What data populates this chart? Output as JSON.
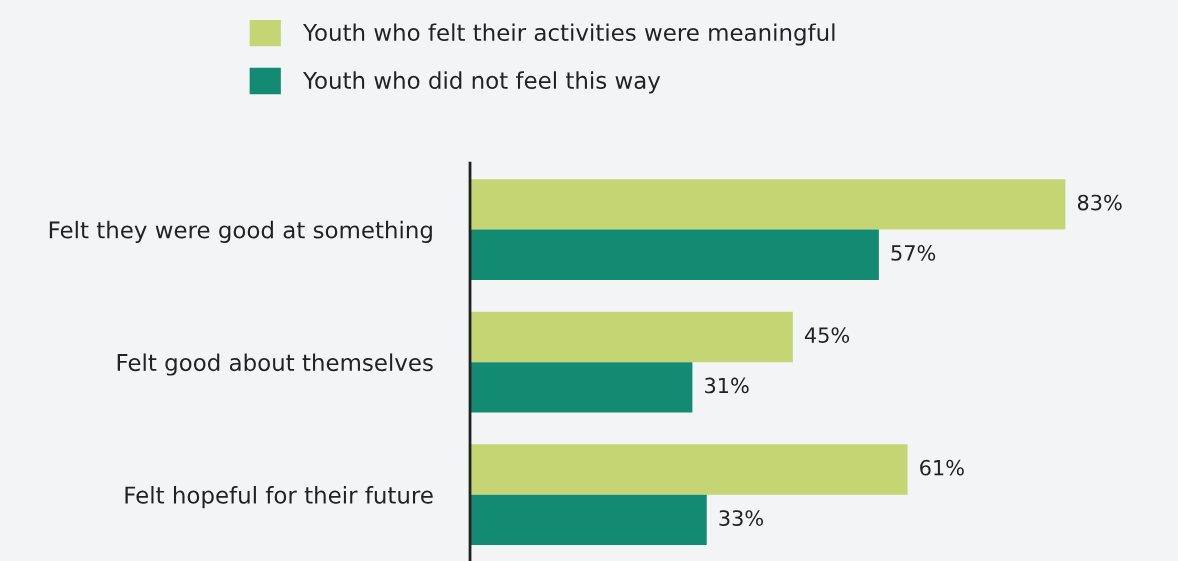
{
  "chart_data": {
    "type": "bar",
    "orientation": "horizontal",
    "categories": [
      "Felt they were good at something",
      "Felt good about themselves",
      "Felt hopeful for their future"
    ],
    "series": [
      {
        "name": "Youth who felt their activities were meaningful",
        "color": "#c5d574",
        "values": [
          83,
          45,
          61
        ],
        "value_labels": [
          "83%",
          "45%",
          "61%"
        ]
      },
      {
        "name": "Youth who did not feel this way",
        "color": "#138a72",
        "values": [
          57,
          31,
          33
        ],
        "value_labels": [
          "57%",
          "31%",
          "33%"
        ]
      }
    ],
    "tick_labels": "y",
    "legend": "top",
    "grid": false
  }
}
